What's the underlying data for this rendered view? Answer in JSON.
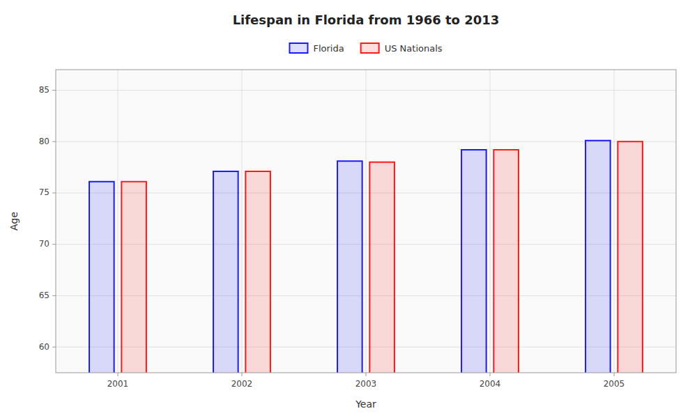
{
  "chart_data": {
    "type": "bar",
    "title": "Lifespan in Florida from 1966 to 2013",
    "x_label": "Year",
    "y_label": "Age",
    "categories": [
      "2001",
      "2002",
      "2003",
      "2004",
      "2005"
    ],
    "series": [
      {
        "name": "Florida",
        "color": "#1a1aff",
        "values": [
          76.1,
          77.1,
          78.1,
          79.2,
          80.1
        ]
      },
      {
        "name": "US Nationals",
        "color": "#ff1a1a",
        "values": [
          76.1,
          77.1,
          78.0,
          79.2,
          80.0
        ]
      }
    ],
    "ylim": [
      57.5,
      87
    ],
    "yticks": [
      60,
      65,
      70,
      75,
      80,
      85
    ],
    "grid": true,
    "legend": "top"
  }
}
